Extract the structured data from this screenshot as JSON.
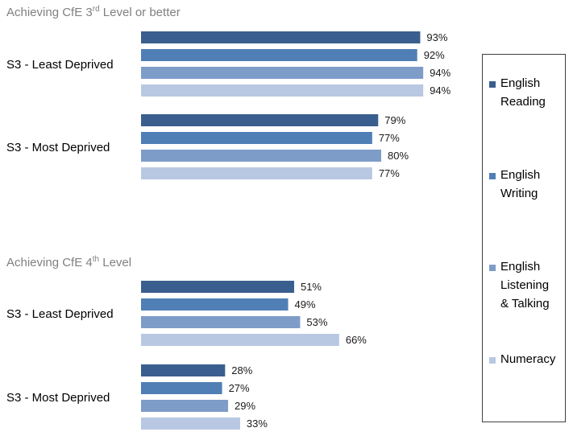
{
  "chart_data": {
    "type": "bar",
    "orientation": "horizontal",
    "xlim": [
      0,
      100
    ],
    "grid": false,
    "legend_placement": "right",
    "series": [
      {
        "name": "English Reading",
        "color": "#3a5f8f"
      },
      {
        "name": "English Writing",
        "color": "#4f7fb5"
      },
      {
        "name": "English Listening & Talking",
        "color": "#7e9cc8"
      },
      {
        "name": "Numeracy",
        "color": "#b8c8e2"
      }
    ],
    "panels": [
      {
        "title_main": "Achieving CfE 3",
        "title_sup": "rd",
        "title_rest": " Level or better",
        "groups": [
          {
            "category": "S3 - Least Deprived",
            "values": [
              93,
              92,
              94,
              94
            ],
            "labels": [
              "93%",
              "92%",
              "94%",
              "94%"
            ]
          },
          {
            "category": "S3 - Most Deprived",
            "values": [
              79,
              77,
              80,
              77
            ],
            "labels": [
              "79%",
              "77%",
              "80%",
              "77%"
            ]
          }
        ]
      },
      {
        "title_main": "Achieving CfE 4",
        "title_sup": "th",
        "title_rest": " Level",
        "groups": [
          {
            "category": "S3 - Least Deprived",
            "values": [
              51,
              49,
              53,
              66
            ],
            "labels": [
              "51%",
              "49%",
              "53%",
              "66%"
            ]
          },
          {
            "category": "S3 - Most Deprived",
            "values": [
              28,
              27,
              29,
              33
            ],
            "labels": [
              "28%",
              "27%",
              "29%",
              "33%"
            ]
          }
        ]
      }
    ]
  },
  "legend": {
    "items": [
      {
        "line1": "English",
        "line2": "Reading",
        "line3": ""
      },
      {
        "line1": "English",
        "line2": "Writing",
        "line3": ""
      },
      {
        "line1": "English",
        "line2": "Listening",
        "line3": "& Talking"
      },
      {
        "line1": "Numeracy",
        "line2": "",
        "line3": ""
      }
    ]
  }
}
